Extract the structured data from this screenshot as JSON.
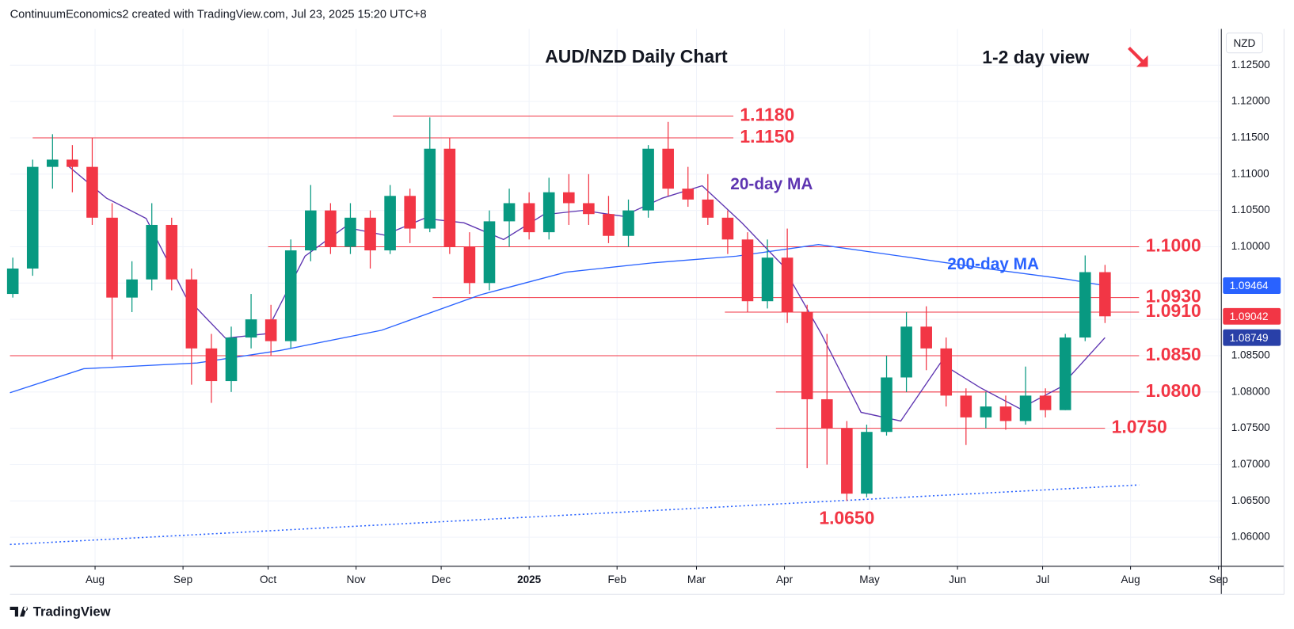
{
  "chart_data": {
    "type": "candlestick",
    "header": "ContinuumEconomics2 created with TradingView.com, Jul 23, 2025 15:20 UTC+8",
    "title": "AUD/NZD Daily Chart",
    "subtitle": "1-2 day view",
    "y_axis_label": "NZD",
    "footer": "TradingView",
    "up_color": "#089981",
    "down_color": "#f23645",
    "x": [
      "2024-07-03",
      "2024-07-10",
      "2024-07-17",
      "2024-07-24",
      "2024-07-31",
      "2024-08-07",
      "2024-08-14",
      "2024-08-21",
      "2024-08-28",
      "2024-09-04",
      "2024-09-11",
      "2024-09-18",
      "2024-09-25",
      "2024-10-02",
      "2024-10-09",
      "2024-10-16",
      "2024-10-23",
      "2024-10-30",
      "2024-11-06",
      "2024-11-13",
      "2024-11-20",
      "2024-11-27",
      "2024-12-04",
      "2024-12-11",
      "2024-12-18",
      "2024-12-25",
      "2025-01-01",
      "2025-01-08",
      "2025-01-15",
      "2025-01-22",
      "2025-01-29",
      "2025-02-05",
      "2025-02-12",
      "2025-02-19",
      "2025-02-26",
      "2025-03-05",
      "2025-03-12",
      "2025-03-19",
      "2025-03-26",
      "2025-04-02",
      "2025-04-09",
      "2025-04-16",
      "2025-04-23",
      "2025-04-30",
      "2025-05-07",
      "2025-05-14",
      "2025-05-21",
      "2025-05-28",
      "2025-06-04",
      "2025-06-11",
      "2025-06-18",
      "2025-06-25",
      "2025-07-02",
      "2025-07-09",
      "2025-07-16",
      "2025-07-23"
    ],
    "open": [
      1.0935,
      1.097,
      1.111,
      1.112,
      1.111,
      1.104,
      1.093,
      1.0955,
      1.103,
      1.0955,
      1.086,
      1.0815,
      1.0875,
      1.09,
      1.087,
      1.0995,
      1.105,
      1.1,
      1.104,
      1.0995,
      1.107,
      1.1025,
      1.1135,
      1.1,
      1.095,
      1.1035,
      1.106,
      1.102,
      1.1075,
      1.106,
      1.1045,
      1.1015,
      1.105,
      1.1135,
      1.108,
      1.1065,
      1.104,
      1.101,
      1.0925,
      1.0985,
      1.091,
      1.079,
      1.075,
      1.066,
      1.0745,
      1.082,
      1.089,
      1.086,
      1.0795,
      1.0765,
      1.078,
      1.076,
      1.0795,
      1.0775,
      1.0875,
      1.0965
    ],
    "high": [
      1.0985,
      1.112,
      1.1155,
      1.114,
      1.115,
      1.106,
      1.098,
      1.106,
      1.104,
      1.097,
      1.088,
      1.089,
      1.0935,
      1.092,
      1.101,
      1.1085,
      1.106,
      1.106,
      1.105,
      1.1085,
      1.108,
      1.1178,
      1.115,
      1.102,
      1.105,
      1.108,
      1.1075,
      1.1095,
      1.11,
      1.11,
      1.107,
      1.1065,
      1.114,
      1.1172,
      1.111,
      1.11,
      1.105,
      1.102,
      1.101,
      1.1025,
      1.092,
      1.088,
      1.076,
      1.0755,
      1.085,
      1.091,
      1.0918,
      1.0875,
      1.0805,
      1.08,
      1.0795,
      1.0835,
      1.0805,
      1.088,
      1.0988,
      1.0975
    ],
    "low": [
      1.093,
      1.096,
      1.108,
      1.1075,
      1.103,
      1.0845,
      1.091,
      1.094,
      1.094,
      1.081,
      1.0785,
      1.08,
      1.086,
      1.085,
      1.086,
      1.098,
      1.099,
      1.099,
      1.097,
      1.099,
      1.1005,
      1.102,
      1.099,
      1.0935,
      1.094,
      1.1,
      1.101,
      1.101,
      1.103,
      1.103,
      1.1005,
      1.1,
      1.104,
      1.107,
      1.1055,
      1.103,
      1.099,
      1.091,
      1.0915,
      1.0895,
      1.0695,
      1.07,
      1.065,
      1.0655,
      1.074,
      1.08,
      1.083,
      1.078,
      1.0727,
      1.075,
      1.0748,
      1.0755,
      1.0765,
      1.0775,
      1.087,
      1.0895
    ],
    "close": [
      1.097,
      1.111,
      1.112,
      1.111,
      1.104,
      1.093,
      1.0955,
      1.103,
      1.0955,
      1.086,
      1.0815,
      1.0875,
      1.09,
      1.087,
      1.0995,
      1.105,
      1.1,
      1.104,
      1.0995,
      1.107,
      1.1025,
      1.1135,
      1.1,
      1.095,
      1.1035,
      1.106,
      1.102,
      1.1075,
      1.106,
      1.1045,
      1.1015,
      1.105,
      1.1135,
      1.108,
      1.1065,
      1.104,
      1.101,
      1.0925,
      1.0985,
      1.091,
      1.079,
      1.075,
      1.066,
      1.0745,
      1.082,
      1.089,
      1.086,
      1.0795,
      1.0765,
      1.078,
      1.076,
      1.0795,
      1.0775,
      1.0875,
      1.0965,
      1.09042
    ],
    "series": [
      {
        "name": "20-day MA",
        "color": "#5e35b1",
        "x": [
          "2024-07-22",
          "2024-08-05",
          "2024-08-19",
          "2024-09-02",
          "2024-09-16",
          "2024-09-30",
          "2024-10-14",
          "2024-10-28",
          "2024-11-11",
          "2024-11-25",
          "2024-12-09",
          "2024-12-23",
          "2025-01-06",
          "2025-01-20",
          "2025-02-03",
          "2025-02-17",
          "2025-03-03",
          "2025-03-17",
          "2025-03-31",
          "2025-04-14",
          "2025-04-28",
          "2025-05-12",
          "2025-05-26",
          "2025-06-09",
          "2025-06-23",
          "2025-07-07",
          "2025-07-23"
        ],
        "values": [
          1.1113,
          1.1067,
          1.1039,
          1.0931,
          1.0874,
          1.088,
          1.0987,
          1.1027,
          1.1016,
          1.1039,
          1.1033,
          1.101,
          1.1044,
          1.105,
          1.1042,
          1.1067,
          1.1084,
          1.1033,
          1.0976,
          1.088,
          1.0772,
          1.076,
          1.084,
          1.0806,
          1.0777,
          1.0806,
          1.08749
        ]
      },
      {
        "name": "200-day MA",
        "color": "#2962ff",
        "x": [
          "2024-07-02",
          "2024-07-28",
          "2024-09-06",
          "2024-10-05",
          "2024-11-10",
          "2024-12-15",
          "2025-01-14",
          "2025-02-14",
          "2025-03-15",
          "2025-04-13",
          "2025-05-12",
          "2025-06-11",
          "2025-07-10",
          "2025-07-23"
        ],
        "values": [
          1.0799,
          1.0832,
          1.084,
          1.0857,
          1.0885,
          1.0934,
          1.0965,
          1.0978,
          1.0987,
          1.1003,
          1.0987,
          1.097,
          1.0955,
          1.09464
        ]
      }
    ],
    "trendline": {
      "color": "#2962ff",
      "x": [
        "2024-07-02",
        "2025-08-04"
      ],
      "values": [
        1.059,
        1.0672
      ]
    },
    "levels": [
      {
        "value": 1.118,
        "label": "1.1180",
        "from": "2024-11-14",
        "to": "2025-03-14"
      },
      {
        "value": 1.115,
        "label": "1.1150",
        "from": "2024-07-10",
        "to": "2025-03-14"
      },
      {
        "value": 1.1,
        "label": "1.1000",
        "from": "2024-10-01",
        "to": "2025-08-04"
      },
      {
        "value": 1.093,
        "label": "1.0930",
        "from": "2024-11-28",
        "to": "2025-08-04"
      },
      {
        "value": 1.091,
        "label": "1.0910",
        "from": "2025-03-11",
        "to": "2025-08-04"
      },
      {
        "value": 1.085,
        "label": "1.0850",
        "from": "2024-07-02",
        "to": "2025-08-04"
      },
      {
        "value": 1.08,
        "label": "1.0800",
        "from": "2025-03-29",
        "to": "2025-08-04"
      },
      {
        "value": 1.075,
        "label": "1.0750",
        "from": "2025-03-29",
        "to": "2025-07-23"
      }
    ],
    "low_annotation": {
      "value": 1.065,
      "label": "1.0650",
      "x": "2025-04-23"
    },
    "price_tags": [
      {
        "value": 1.09464,
        "label": "1.09464",
        "color": "#2962ff"
      },
      {
        "value": 1.09042,
        "label": "1.09042",
        "color": "#f23645"
      },
      {
        "value": 1.08749,
        "label": "1.08749",
        "color": "#2940a8"
      }
    ],
    "xlim": [
      "2024-07-02",
      "2025-09-02"
    ],
    "ylim": [
      1.056,
      1.13
    ],
    "xticks": [
      {
        "value": "2024-08-01",
        "label": "Aug"
      },
      {
        "value": "2024-09-01",
        "label": "Sep"
      },
      {
        "value": "2024-10-01",
        "label": "Oct"
      },
      {
        "value": "2024-11-01",
        "label": "Nov"
      },
      {
        "value": "2024-12-01",
        "label": "Dec"
      },
      {
        "value": "2025-01-01",
        "label": "2025"
      },
      {
        "value": "2025-02-01",
        "label": "Feb"
      },
      {
        "value": "2025-03-01",
        "label": "Mar"
      },
      {
        "value": "2025-04-01",
        "label": "Apr"
      },
      {
        "value": "2025-05-01",
        "label": "May"
      },
      {
        "value": "2025-06-01",
        "label": "Jun"
      },
      {
        "value": "2025-07-01",
        "label": "Jul"
      },
      {
        "value": "2025-08-01",
        "label": "Aug"
      },
      {
        "value": "2025-09-01",
        "label": "Sep"
      }
    ],
    "yticks": [
      {
        "value": 1.125,
        "label": "1.12500"
      },
      {
        "value": 1.12,
        "label": "1.12000"
      },
      {
        "value": 1.115,
        "label": "1.11500"
      },
      {
        "value": 1.11,
        "label": "1.11000"
      },
      {
        "value": 1.105,
        "label": "1.10500"
      },
      {
        "value": 1.1,
        "label": "1.10000"
      },
      {
        "value": 1.095,
        "label": "1.09500"
      },
      {
        "value": 1.09,
        "label": "1.09000"
      },
      {
        "value": 1.085,
        "label": "1.08500"
      },
      {
        "value": 1.08,
        "label": "1.08000"
      },
      {
        "value": 1.075,
        "label": "1.07500"
      },
      {
        "value": 1.07,
        "label": "1.07000"
      },
      {
        "value": 1.065,
        "label": "1.06500"
      },
      {
        "value": 1.06,
        "label": "1.06000"
      }
    ],
    "grid": true
  }
}
